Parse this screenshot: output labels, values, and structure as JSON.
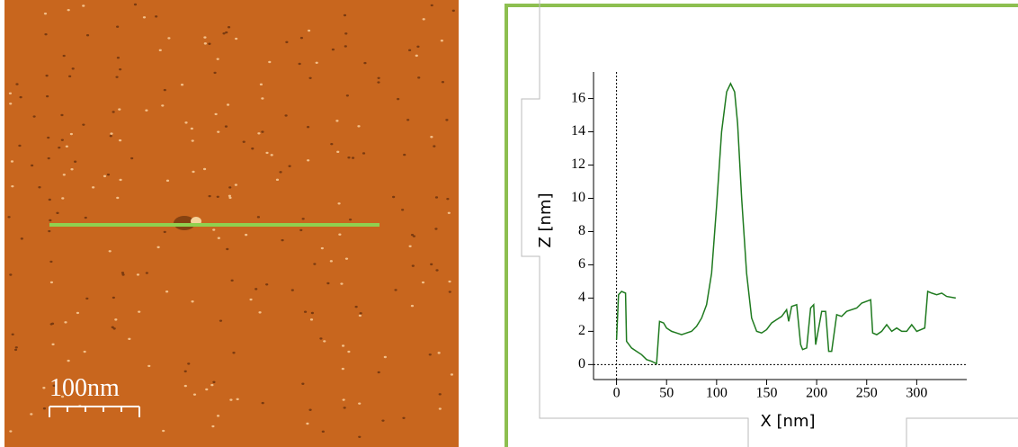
{
  "image": {
    "scale_label": "100nm"
  },
  "chart_data": {
    "type": "line",
    "xlabel": "X [nm]",
    "ylabel": "Z [nm]",
    "color": "#1f7a1f",
    "x": [
      0,
      2,
      5,
      9,
      10,
      15,
      20,
      25,
      30,
      35,
      40,
      43,
      47,
      50,
      55,
      60,
      65,
      70,
      75,
      80,
      85,
      90,
      95,
      100,
      105,
      110,
      114,
      118,
      121,
      125,
      130,
      135,
      140,
      145,
      150,
      155,
      160,
      165,
      170,
      172,
      175,
      180,
      184,
      186,
      190,
      194,
      197,
      199,
      205,
      209,
      212,
      215,
      220,
      225,
      230,
      240,
      245,
      254,
      256,
      260,
      265,
      270,
      275,
      280,
      285,
      290,
      295,
      300,
      308,
      311,
      315,
      320,
      325,
      330,
      339
    ],
    "values": [
      1.5,
      4.2,
      4.4,
      4.3,
      1.4,
      1.0,
      0.8,
      0.6,
      0.3,
      0.2,
      0.05,
      2.6,
      2.5,
      2.2,
      2.0,
      1.9,
      1.8,
      1.9,
      2.0,
      2.3,
      2.8,
      3.6,
      5.5,
      9.5,
      14.0,
      16.4,
      16.9,
      16.4,
      14.5,
      10.0,
      5.5,
      2.8,
      2.0,
      1.9,
      2.1,
      2.5,
      2.7,
      2.9,
      3.3,
      2.6,
      3.5,
      3.6,
      1.2,
      0.9,
      1.0,
      3.4,
      3.6,
      1.2,
      3.2,
      3.2,
      0.8,
      0.8,
      3.0,
      2.9,
      3.2,
      3.4,
      3.7,
      3.9,
      1.9,
      1.8,
      2.0,
      2.4,
      2.0,
      2.2,
      2.0,
      2.0,
      2.4,
      2.0,
      2.2,
      4.4,
      4.3,
      4.2,
      4.3,
      4.1,
      4.0
    ],
    "xlim": [
      -23,
      350
    ],
    "ylim": [
      -0.9,
      17.6
    ],
    "xticks": [
      0,
      50,
      100,
      150,
      200,
      250,
      300
    ],
    "yticks": [
      0,
      2,
      4,
      6,
      8,
      10,
      12,
      14,
      16
    ]
  }
}
